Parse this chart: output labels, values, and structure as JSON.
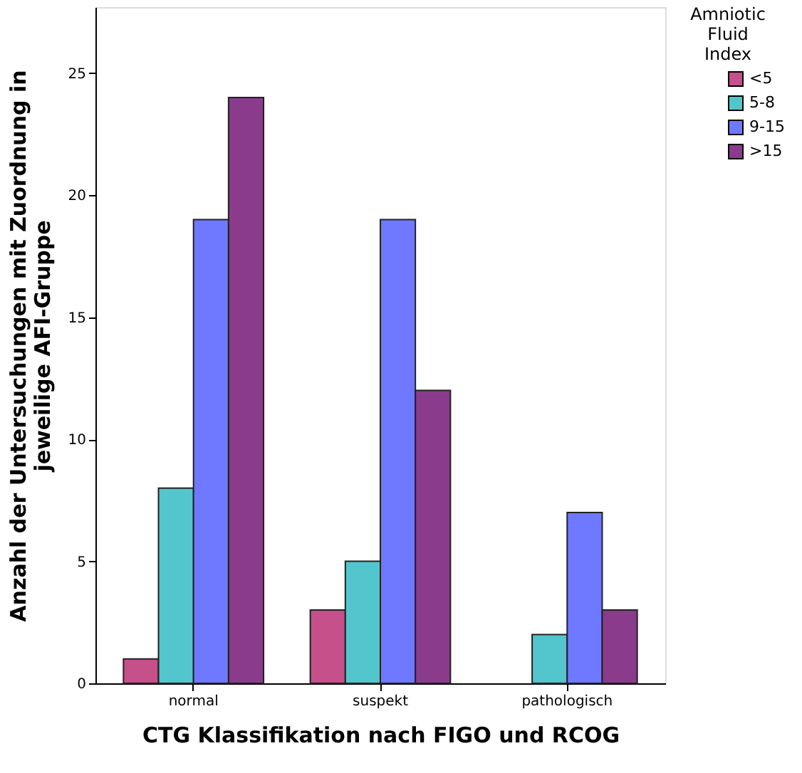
{
  "chart_data": {
    "type": "bar",
    "xlabel": "CTG Klassifikation nach FIGO und RCOG",
    "ylabel": "Anzahl der Untersuchungen mit Zuordnung in jeweilige AFI-Gruppe",
    "legend_title": "Amniotic Fluid Index",
    "categories": [
      "normal",
      "suspekt",
      "pathologisch"
    ],
    "series": [
      {
        "name": "<5",
        "color": "#c5508a",
        "values": [
          1,
          3,
          null
        ]
      },
      {
        "name": "5-8",
        "color": "#52c6cc",
        "values": [
          8,
          5,
          2
        ]
      },
      {
        "name": "9-15",
        "color": "#6f79ff",
        "values": [
          19,
          19,
          7
        ]
      },
      {
        "name": ">15",
        "color": "#8a3b8c",
        "values": [
          24,
          12,
          3
        ]
      }
    ],
    "ylim": [
      0,
      27.7
    ],
    "yticks": [
      0,
      5,
      10,
      15,
      20,
      25
    ],
    "grid": false,
    "legend": "top right"
  }
}
